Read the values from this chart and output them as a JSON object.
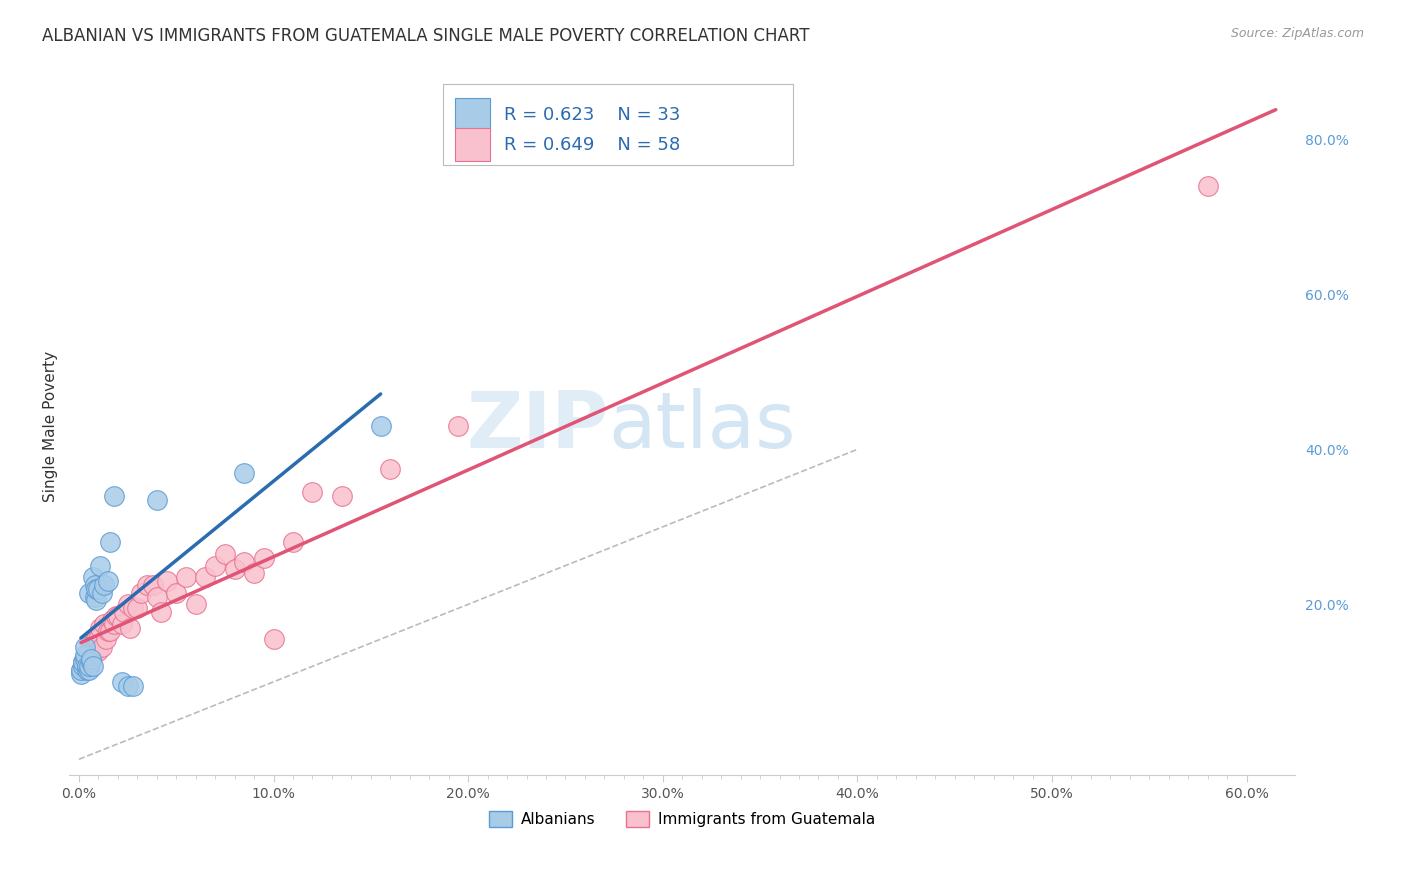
{
  "title": "ALBANIAN VS IMMIGRANTS FROM GUATEMALA SINGLE MALE POVERTY CORRELATION CHART",
  "source": "Source: ZipAtlas.com",
  "ylabel": "Single Male Poverty",
  "xlabel": "",
  "xlim": [
    -0.005,
    0.625
  ],
  "ylim": [
    -0.02,
    0.88
  ],
  "xtick_labels": [
    "0.0%",
    "",
    "",
    "",
    "",
    "",
    "",
    "",
    "",
    "",
    "10.0%",
    "",
    "",
    "",
    "",
    "",
    "",
    "",
    "",
    "",
    "20.0%",
    "",
    "",
    "",
    "",
    "",
    "",
    "",
    "",
    "",
    "30.0%",
    "",
    "",
    "",
    "",
    "",
    "",
    "",
    "",
    "",
    "40.0%",
    "",
    "",
    "",
    "",
    "",
    "",
    "",
    "",
    "",
    "50.0%",
    "",
    "",
    "",
    "",
    "",
    "",
    "",
    "",
    "",
    "60.0%"
  ],
  "xtick_vals": [
    0.0,
    0.01,
    0.02,
    0.03,
    0.04,
    0.05,
    0.06,
    0.07,
    0.08,
    0.09,
    0.1,
    0.11,
    0.12,
    0.13,
    0.14,
    0.15,
    0.16,
    0.17,
    0.18,
    0.19,
    0.2,
    0.21,
    0.22,
    0.23,
    0.24,
    0.25,
    0.26,
    0.27,
    0.28,
    0.29,
    0.3,
    0.31,
    0.32,
    0.33,
    0.34,
    0.35,
    0.36,
    0.37,
    0.38,
    0.39,
    0.4,
    0.41,
    0.42,
    0.43,
    0.44,
    0.45,
    0.46,
    0.47,
    0.48,
    0.49,
    0.5,
    0.51,
    0.52,
    0.53,
    0.54,
    0.55,
    0.56,
    0.57,
    0.58,
    0.59,
    0.6
  ],
  "xtick_major_labels": [
    "0.0%",
    "10.0%",
    "20.0%",
    "30.0%",
    "40.0%",
    "50.0%",
    "60.0%"
  ],
  "xtick_major_vals": [
    0.0,
    0.1,
    0.2,
    0.3,
    0.4,
    0.5,
    0.6
  ],
  "ytick_labels_right": [
    "20.0%",
    "40.0%",
    "60.0%",
    "80.0%"
  ],
  "ytick_vals_right": [
    0.2,
    0.4,
    0.6,
    0.8
  ],
  "R_albanian": 0.623,
  "N_albanian": 33,
  "R_guatemala": 0.649,
  "N_guatemala": 58,
  "albanian_color": "#a8cce8",
  "albanian_edge_color": "#5b9bd5",
  "albanian_line_color": "#2b6cb0",
  "guatemala_color": "#f9c0cd",
  "guatemala_edge_color": "#e87090",
  "guatemala_line_color": "#e05575",
  "diagonal_color": "#bbbbbb",
  "watermark_zip": "ZIP",
  "watermark_atlas": "atlas",
  "albanian_x": [
    0.001,
    0.001,
    0.002,
    0.002,
    0.003,
    0.003,
    0.003,
    0.004,
    0.004,
    0.005,
    0.005,
    0.005,
    0.006,
    0.006,
    0.007,
    0.007,
    0.008,
    0.008,
    0.009,
    0.009,
    0.01,
    0.011,
    0.012,
    0.013,
    0.015,
    0.016,
    0.018,
    0.022,
    0.025,
    0.028,
    0.04,
    0.085,
    0.155
  ],
  "albanian_y": [
    0.11,
    0.115,
    0.12,
    0.125,
    0.13,
    0.135,
    0.145,
    0.115,
    0.12,
    0.115,
    0.12,
    0.215,
    0.125,
    0.13,
    0.12,
    0.235,
    0.21,
    0.225,
    0.205,
    0.22,
    0.22,
    0.25,
    0.215,
    0.225,
    0.23,
    0.28,
    0.34,
    0.1,
    0.095,
    0.095,
    0.335,
    0.37,
    0.43
  ],
  "guatemala_x": [
    0.001,
    0.002,
    0.002,
    0.003,
    0.003,
    0.004,
    0.004,
    0.005,
    0.005,
    0.006,
    0.006,
    0.007,
    0.007,
    0.008,
    0.008,
    0.009,
    0.009,
    0.01,
    0.01,
    0.011,
    0.012,
    0.013,
    0.014,
    0.015,
    0.016,
    0.017,
    0.018,
    0.019,
    0.02,
    0.022,
    0.023,
    0.025,
    0.026,
    0.028,
    0.03,
    0.032,
    0.035,
    0.038,
    0.04,
    0.042,
    0.045,
    0.05,
    0.055,
    0.06,
    0.065,
    0.07,
    0.075,
    0.08,
    0.085,
    0.09,
    0.095,
    0.1,
    0.11,
    0.12,
    0.135,
    0.16,
    0.195,
    0.58
  ],
  "guatemala_y": [
    0.115,
    0.12,
    0.125,
    0.12,
    0.13,
    0.125,
    0.135,
    0.12,
    0.14,
    0.13,
    0.145,
    0.135,
    0.15,
    0.145,
    0.155,
    0.15,
    0.155,
    0.155,
    0.14,
    0.17,
    0.145,
    0.175,
    0.155,
    0.165,
    0.165,
    0.18,
    0.175,
    0.185,
    0.185,
    0.175,
    0.19,
    0.2,
    0.17,
    0.195,
    0.195,
    0.215,
    0.225,
    0.225,
    0.21,
    0.19,
    0.23,
    0.215,
    0.235,
    0.2,
    0.235,
    0.25,
    0.265,
    0.245,
    0.255,
    0.24,
    0.26,
    0.155,
    0.28,
    0.345,
    0.34,
    0.375,
    0.43,
    0.74
  ],
  "legend_label_albanian": "Albanians",
  "legend_label_guatemala": "Immigrants from Guatemala",
  "background_color": "#ffffff",
  "grid_color": "#e0e0e0"
}
